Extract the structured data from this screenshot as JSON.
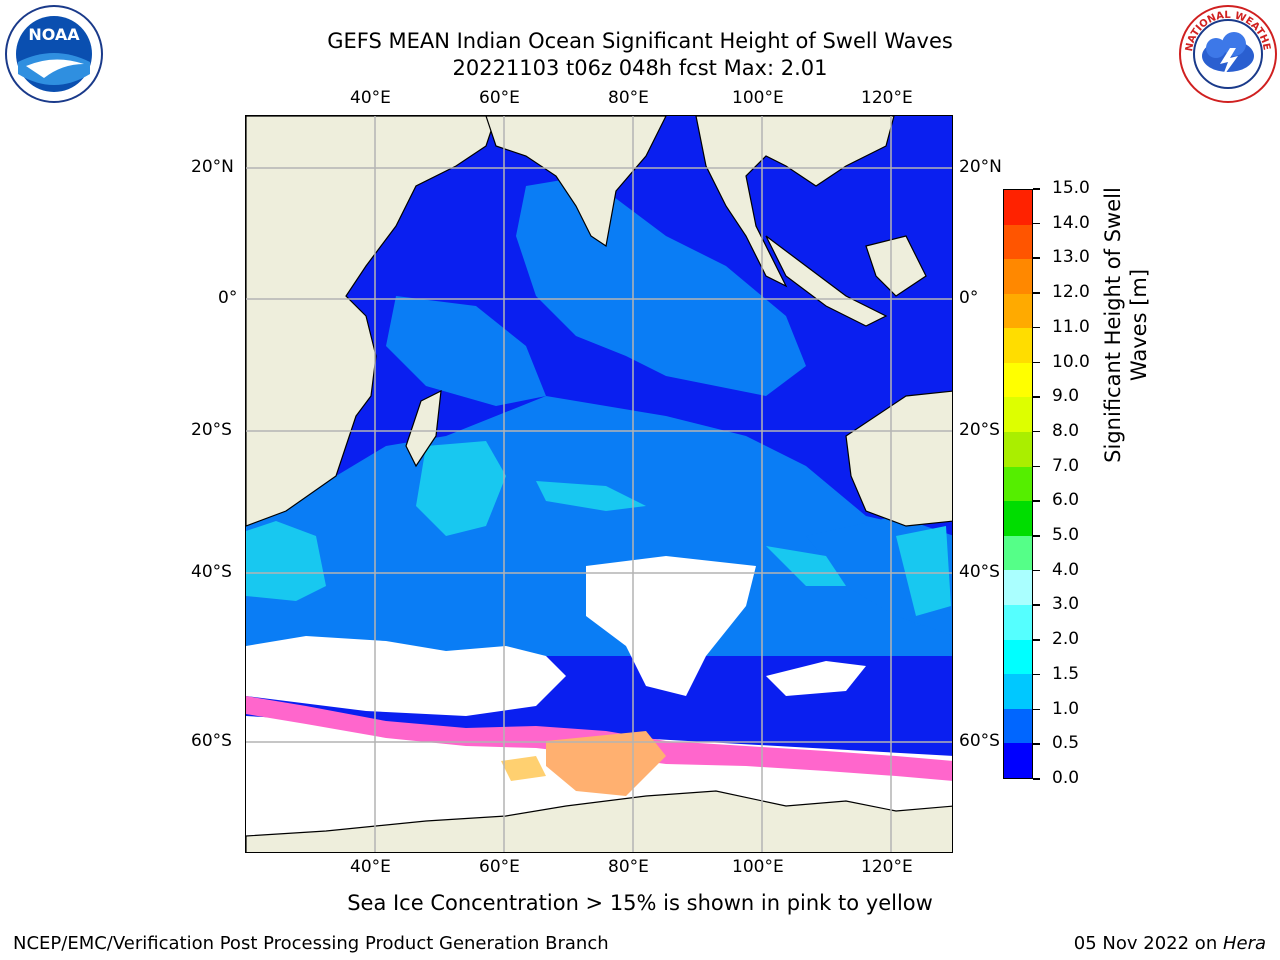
{
  "header": {
    "title_line1": "GEFS MEAN Indian Ocean Significant Height of Swell Waves",
    "title_line2": "20221103 t06z 048h fcst   Max: 2.01"
  },
  "logos": {
    "left": "NOAA",
    "right": "NATIONAL WEATHER SERVICE"
  },
  "map": {
    "lon_labels": [
      "40°E",
      "60°E",
      "80°E",
      "100°E",
      "120°E"
    ],
    "lat_labels": [
      "20°N",
      "0°",
      "20°S",
      "40°S",
      "60°S"
    ],
    "colors": {
      "ocean_low": "#0a1ff0",
      "ocean_mid": "#0a7df5",
      "ocean_high": "#18c8f0",
      "land": "#eeeedc",
      "ice": "#ffffff",
      "ice_edge": "#ff66cc",
      "ice_heavy": "#ffb070"
    }
  },
  "colorbar": {
    "ticks": [
      "0.0",
      "0.5",
      "1.0",
      "1.5",
      "2.0",
      "3.0",
      "4.0",
      "5.0",
      "6.0",
      "7.0",
      "8.0",
      "9.0",
      "10.0",
      "11.0",
      "12.0",
      "13.0",
      "14.0",
      "15.0"
    ],
    "colors": [
      "#0000ff",
      "#0066ff",
      "#00c8ff",
      "#00ffff",
      "#55ffff",
      "#aaffff",
      "#55ff88",
      "#00dd00",
      "#55ee00",
      "#aaee00",
      "#ddff00",
      "#ffff00",
      "#ffdd00",
      "#ffaa00",
      "#ff8800",
      "#ff5500",
      "#ff2200"
    ],
    "title": "Significant Height of Swell Waves [m]"
  },
  "caption": "Sea Ice Concentration > 15% is shown in pink to yellow",
  "footer": {
    "left": "NCEP/EMC/Verification Post Processing Product Generation Branch",
    "date": "05 Nov 2022 on ",
    "host": "Hera"
  }
}
